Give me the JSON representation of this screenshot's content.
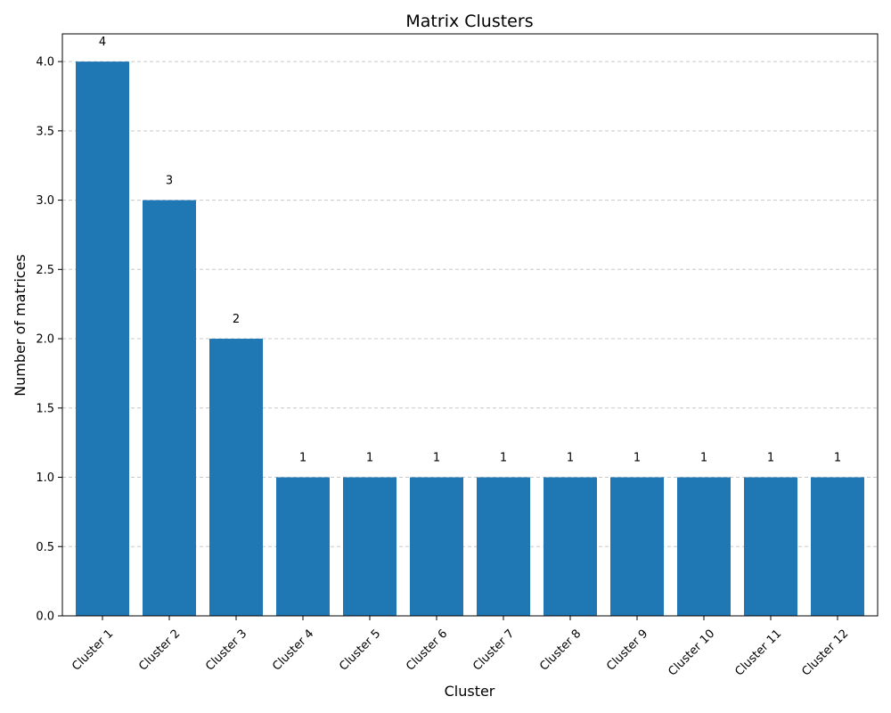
{
  "chart_data": {
    "type": "bar",
    "title": "Matrix Clusters",
    "xlabel": "Cluster",
    "ylabel": "Number of matrices",
    "categories": [
      "Cluster 1",
      "Cluster 2",
      "Cluster 3",
      "Cluster 4",
      "Cluster 5",
      "Cluster 6",
      "Cluster 7",
      "Cluster 8",
      "Cluster 9",
      "Cluster 10",
      "Cluster 11",
      "Cluster 12"
    ],
    "values": [
      4,
      3,
      2,
      1,
      1,
      1,
      1,
      1,
      1,
      1,
      1,
      1
    ],
    "data_labels": [
      "4",
      "3",
      "2",
      "1",
      "1",
      "1",
      "1",
      "1",
      "1",
      "1",
      "1",
      "1"
    ],
    "ylim": [
      0,
      4.2
    ],
    "yticks": [
      0.0,
      0.5,
      1.0,
      1.5,
      2.0,
      2.5,
      3.0,
      3.5,
      4.0
    ],
    "ytick_labels": [
      "0.0",
      "0.5",
      "1.0",
      "1.5",
      "2.0",
      "2.5",
      "3.0",
      "3.5",
      "4.0"
    ],
    "grid": "y-dashed",
    "bar_color": "#1f77b4",
    "grid_color": "#c8c8c8"
  }
}
